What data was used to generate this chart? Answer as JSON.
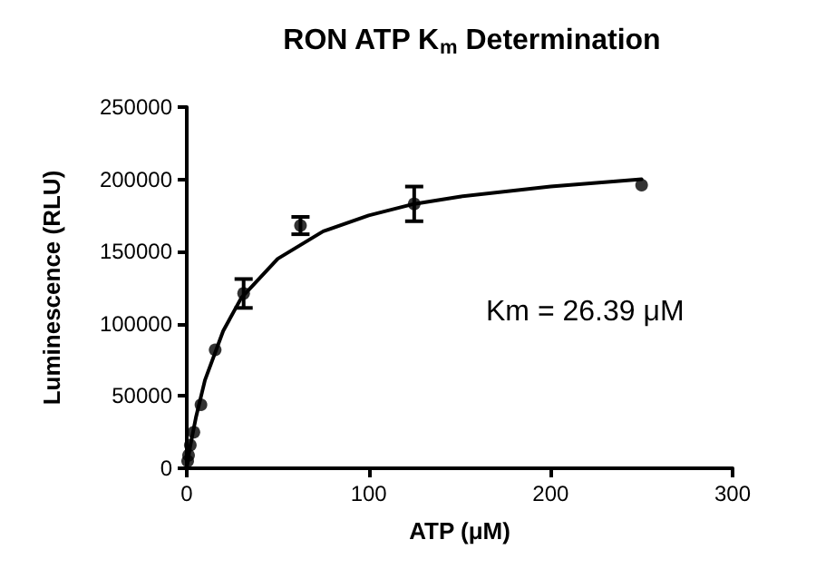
{
  "chart_data": {
    "type": "scatter",
    "title": "RON ATP K$_{m}$ Determination",
    "xlabel": "ATP (μM)",
    "ylabel": "Luminescence (RLU)",
    "annotations": [
      "Km = 26.39 μM"
    ],
    "xlim": [
      0,
      300
    ],
    "xticks": [
      0,
      100,
      200,
      300
    ],
    "ylim": [
      0,
      250000
    ],
    "yticks": [
      0,
      50000,
      100000,
      150000,
      200000,
      250000
    ],
    "grid": false,
    "marker": "circle",
    "series": [
      {
        "color": "#000000",
        "x": [
          0.49,
          0.98,
          1.95,
          3.9,
          7.8,
          15.6,
          31.25,
          62.5,
          125,
          250
        ],
        "values": [
          5000,
          9000,
          16000,
          25000,
          44000,
          82000,
          121000,
          168000,
          183000,
          196000
        ],
        "errors": [
          null,
          null,
          null,
          null,
          null,
          null,
          10000,
          6000,
          12000,
          null
        ]
      },
      {
        "type": "line",
        "color": "#000000",
        "marker": "none",
        "line_style": "solid",
        "x": [
          0,
          2,
          5,
          10,
          20,
          30,
          50,
          75,
          100,
          125,
          150,
          200,
          250
        ],
        "values": [
          0,
          16000,
          35000,
          61000,
          95000,
          118000,
          145000,
          164000,
          175000,
          183000,
          188000,
          195000,
          200000
        ]
      }
    ]
  }
}
